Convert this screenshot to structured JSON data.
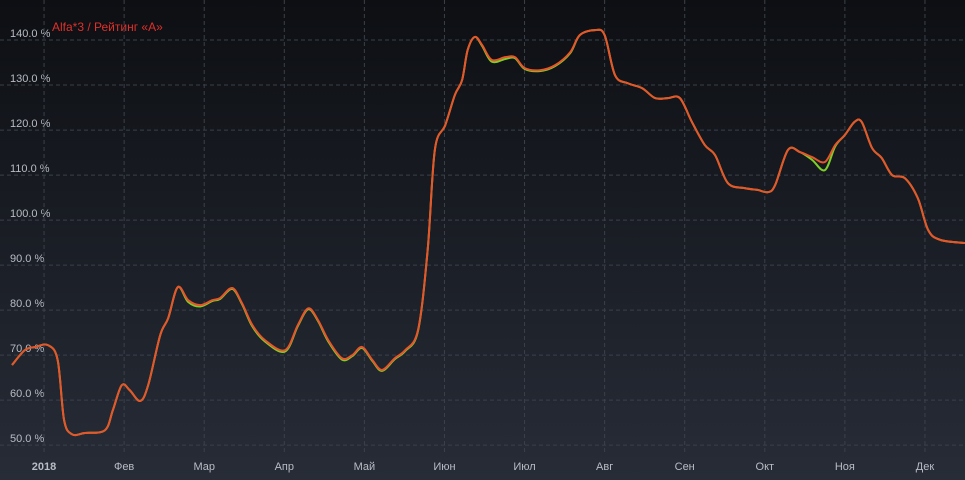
{
  "chart_data": {
    "type": "line",
    "title": "Alfa*3 / Рейтинг «А»",
    "x": [
      -0.4,
      -0.24,
      -0.11,
      0.05,
      0.17,
      0.25,
      0.35,
      0.51,
      0.76,
      0.86,
      0.97,
      1.07,
      1.2,
      1.3,
      1.45,
      1.55,
      1.67,
      1.8,
      1.95,
      2.1,
      2.2,
      2.35,
      2.47,
      2.6,
      2.76,
      3.01,
      3.17,
      3.3,
      3.42,
      3.55,
      3.72,
      3.85,
      3.97,
      4.1,
      4.22,
      4.38,
      4.51,
      4.67,
      4.79,
      4.88,
      5.01,
      5.13,
      5.22,
      5.29,
      5.38,
      5.47,
      5.59,
      5.76,
      5.88,
      6.0,
      6.19,
      6.38,
      6.57,
      6.69,
      6.88,
      7.0,
      7.13,
      7.29,
      7.47,
      7.63,
      7.79,
      7.94,
      8.09,
      8.25,
      8.38,
      8.54,
      8.75,
      8.91,
      9.04,
      9.13,
      9.29,
      9.44,
      9.59,
      9.75,
      9.88,
      10.0,
      10.12,
      10.21,
      10.34,
      10.46,
      10.59,
      10.75,
      10.91,
      11.04,
      11.19,
      11.5
    ],
    "series": [
      {
        "name": "Alfa*3",
        "color": "#7ccf29",
        "values": [
          67.8,
          71.1,
          71.8,
          72.2,
          68.9,
          55.6,
          52.4,
          52.7,
          53.3,
          57.8,
          63.3,
          62.2,
          59.8,
          63.3,
          74.4,
          78.2,
          85.1,
          81.8,
          80.8,
          82.0,
          82.5,
          84.7,
          81.4,
          76.4,
          73.0,
          70.8,
          76.5,
          80.2,
          77.6,
          73.0,
          69.0,
          69.8,
          71.6,
          68.7,
          66.5,
          69.1,
          70.9,
          75.4,
          93.3,
          115.6,
          121.1,
          127.8,
          131.1,
          137.8,
          140.7,
          138.7,
          135.2,
          135.8,
          136.0,
          133.6,
          133.1,
          134.2,
          137.1,
          141.1,
          142.2,
          141.1,
          132.2,
          130.4,
          129.3,
          127.1,
          127.1,
          127.1,
          121.8,
          116.7,
          114.4,
          108.2,
          107.1,
          106.7,
          106.2,
          107.8,
          115.6,
          115.1,
          113.4,
          111.1,
          116.4,
          118.9,
          121.8,
          121.8,
          116.0,
          113.8,
          110.0,
          109.3,
          104.9,
          97.8,
          95.6,
          94.9
        ]
      },
      {
        "name": "Рейтинг «А»",
        "color": "#e8542b",
        "values": [
          67.8,
          71.1,
          71.8,
          72.2,
          68.9,
          55.6,
          52.4,
          52.7,
          53.3,
          57.8,
          63.3,
          62.2,
          59.8,
          63.3,
          74.4,
          78.2,
          85.1,
          82.2,
          81.1,
          82.2,
          82.7,
          84.9,
          81.6,
          76.7,
          73.3,
          71.1,
          76.7,
          80.4,
          77.8,
          73.3,
          69.3,
          70.0,
          71.8,
          68.9,
          66.7,
          69.3,
          71.1,
          75.6,
          93.3,
          115.6,
          121.1,
          127.8,
          131.1,
          137.8,
          140.7,
          138.9,
          135.6,
          136.2,
          136.2,
          133.8,
          133.3,
          134.4,
          137.3,
          141.1,
          142.2,
          141.1,
          132.2,
          130.4,
          129.3,
          127.1,
          127.1,
          127.1,
          121.8,
          116.7,
          114.4,
          108.2,
          107.1,
          106.7,
          106.2,
          107.8,
          115.6,
          115.1,
          114.0,
          112.9,
          116.7,
          118.9,
          121.8,
          121.8,
          116.0,
          113.8,
          110.0,
          109.3,
          104.9,
          97.8,
          95.6,
          94.9
        ]
      }
    ],
    "xlim": [
      -0.55,
      11.5
    ],
    "xticks": [
      {
        "value": 0,
        "label": "2018"
      },
      {
        "value": 1,
        "label": "Фев"
      },
      {
        "value": 2,
        "label": "Мар"
      },
      {
        "value": 3,
        "label": "Апр"
      },
      {
        "value": 4,
        "label": "Май"
      },
      {
        "value": 5,
        "label": "Июн"
      },
      {
        "value": 6,
        "label": "Июл"
      },
      {
        "value": 7,
        "label": "Авг"
      },
      {
        "value": 8,
        "label": "Сен"
      },
      {
        "value": 9,
        "label": "Окт"
      },
      {
        "value": 10,
        "label": "Ноя"
      },
      {
        "value": 11,
        "label": "Дек"
      }
    ],
    "ylim": [
      47.8,
      148.9
    ],
    "yticks": [
      {
        "value": 50,
        "label": "50.0 %"
      },
      {
        "value": 60,
        "label": "60.0 %"
      },
      {
        "value": 70,
        "label": "70.0 %"
      },
      {
        "value": 80,
        "label": "80.0 %"
      },
      {
        "value": 90,
        "label": "90.0 %"
      },
      {
        "value": 100,
        "label": "100.0 %"
      },
      {
        "value": 110,
        "label": "110.0 %"
      },
      {
        "value": 120,
        "label": "120.0 %"
      },
      {
        "value": 130,
        "label": "130.0 %"
      },
      {
        "value": 140,
        "label": "140.0 %"
      }
    ],
    "grid": true
  }
}
